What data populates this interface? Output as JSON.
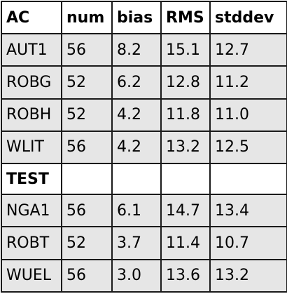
{
  "table": {
    "headers": [
      "AC",
      "num",
      "bias",
      "RMS",
      "stddev"
    ],
    "group1_rows": [
      [
        "AUT1",
        "56",
        "8.2",
        "15.1",
        "12.7"
      ],
      [
        "ROBG",
        "52",
        "6.2",
        "12.8",
        "11.2"
      ],
      [
        "ROBH",
        "52",
        "4.2",
        "11.8",
        "11.0"
      ],
      [
        "WLIT",
        "56",
        "4.2",
        "13.2",
        "12.5"
      ]
    ],
    "section_label": "TEST",
    "group2_rows": [
      [
        "NGA1",
        "56",
        "6.1",
        "14.7",
        "13.4"
      ],
      [
        "ROBT",
        "52",
        "3.7",
        "11.4",
        "10.7"
      ],
      [
        "WUEL",
        "56",
        "3.0",
        "13.6",
        "13.2"
      ]
    ]
  },
  "colors": {
    "row_background": "#e6e6e6",
    "header_background": "#ffffff",
    "border": "#1a1a1a"
  }
}
